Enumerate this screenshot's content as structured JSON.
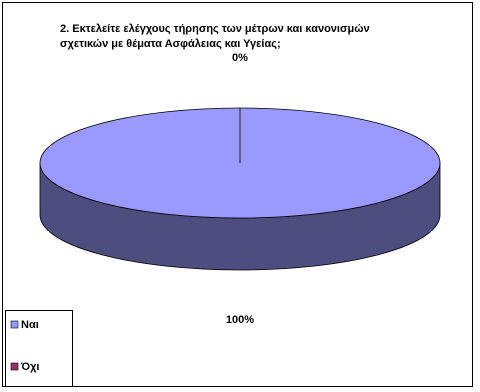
{
  "chart_data": {
    "type": "pie",
    "title": "2.  Εκτελείτε ελέγχους τήρησης των μέτρων και κανονισμών σχετικών με θέματα Ασφάλειας και Υγείας;",
    "categories": [
      "Ναι",
      "Όχι"
    ],
    "values": [
      100,
      0
    ],
    "value_labels": [
      "100%",
      "0%"
    ],
    "colors": [
      "#9999ff",
      "#993366"
    ],
    "legend": "bottom-left"
  }
}
